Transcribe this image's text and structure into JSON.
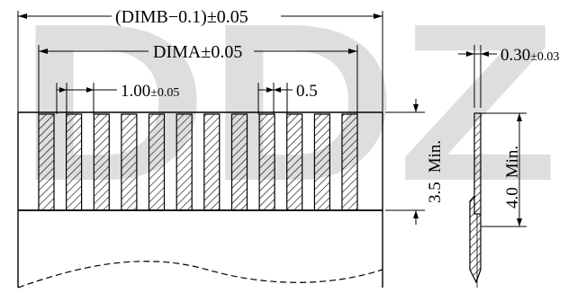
{
  "watermark": {
    "text": "DDZ",
    "color": "#bdbdbd"
  },
  "dimensions": {
    "overall_width": {
      "label": "(DIMB−0.1)",
      "tol": "±0.05"
    },
    "contact_span": {
      "label": "DIMA",
      "tol": "±0.05"
    },
    "pitch": {
      "value": "1.00",
      "tol": "±0.05"
    },
    "contact_width": {
      "value": "0.5"
    },
    "thickness": {
      "value": "0.30",
      "tol": "±0.03"
    },
    "contact_length": {
      "value": "3.5",
      "suffix": "Min."
    },
    "stiffener_length": {
      "value": "4.0",
      "suffix": "Min."
    }
  },
  "colors": {
    "line": "#000000",
    "background": "#ffffff",
    "hatch": "#000000"
  },
  "contacts": {
    "count": 12,
    "hatched": true
  }
}
